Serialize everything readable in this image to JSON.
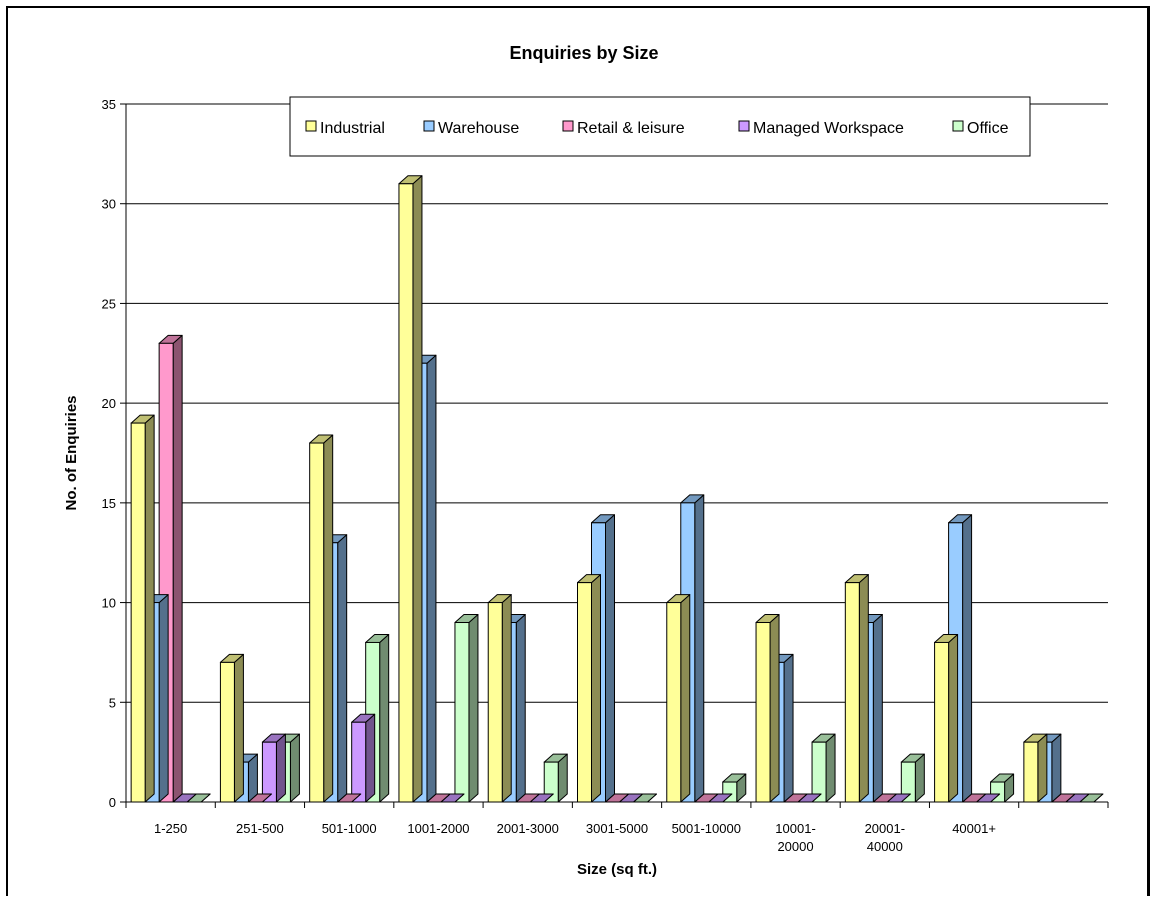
{
  "chart_data": {
    "type": "bar",
    "title": "Enquiries by Size",
    "xlabel": "Size (sq ft.)",
    "ylabel": "No. of Enquiries",
    "ylim": [
      0,
      35
    ],
    "yticks": [
      "0",
      "5",
      "10",
      "15",
      "20",
      "25",
      "30",
      "35"
    ],
    "grid": true,
    "legend_position": "top",
    "categories": [
      [
        "1-250"
      ],
      [
        "251-500"
      ],
      [
        "501-1000"
      ],
      [
        "1001-2000"
      ],
      [
        "2001-3000"
      ],
      [
        "3001-5000"
      ],
      [
        "5001-10000"
      ],
      [
        "10001-",
        "20000"
      ],
      [
        "20001-",
        "40000"
      ],
      [
        "40001+"
      ],
      [
        ""
      ]
    ],
    "series": [
      {
        "name": "Industrial",
        "color": "#ffff99",
        "values": [
          19,
          7,
          18,
          31,
          10,
          11,
          10,
          9,
          11,
          8,
          3
        ]
      },
      {
        "name": "Warehouse",
        "color": "#99ccff",
        "values": [
          10,
          2,
          13,
          22,
          9,
          14,
          15,
          7,
          9,
          14,
          3
        ]
      },
      {
        "name": "Retail & leisure",
        "color": "#ff99cc",
        "values": [
          23,
          0,
          0,
          0,
          0,
          0,
          0,
          0,
          0,
          0,
          0
        ]
      },
      {
        "name": "Managed Workspace",
        "color": "#cc99ff",
        "values": [
          0,
          3,
          4,
          0,
          0,
          0,
          0,
          0,
          0,
          0,
          0
        ]
      },
      {
        "name": "Office",
        "color": "#ccffcc",
        "values": [
          0,
          3,
          8,
          9,
          2,
          0,
          1,
          3,
          2,
          1,
          0
        ]
      }
    ]
  }
}
